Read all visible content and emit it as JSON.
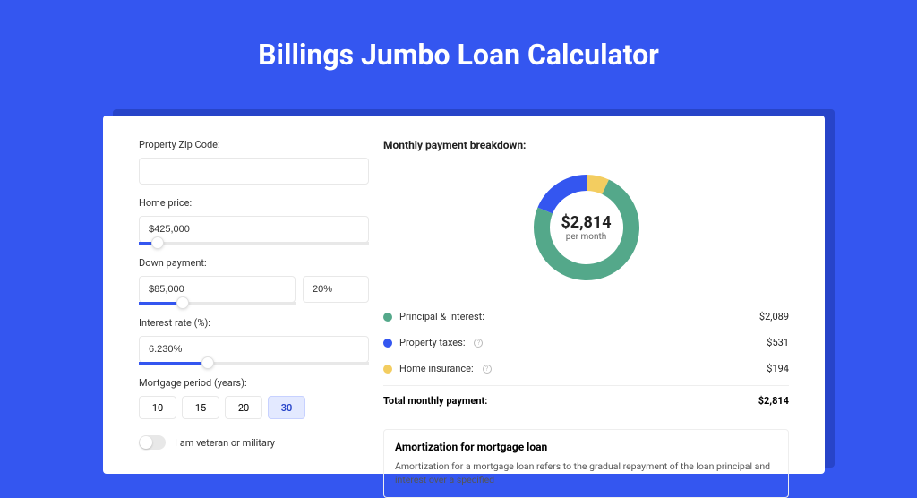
{
  "page": {
    "title": "Billings Jumbo Loan Calculator",
    "background_color": "#3456f0",
    "card_shadow_color": "#2744c9"
  },
  "form": {
    "zip": {
      "label": "Property Zip Code:",
      "value": ""
    },
    "home_price": {
      "label": "Home price:",
      "value": "$425,000",
      "slider_position_pct": 8
    },
    "down_payment": {
      "label": "Down payment:",
      "value": "$85,000",
      "pct_value": "20%",
      "slider_position_pct": 28
    },
    "interest_rate": {
      "label": "Interest rate (%):",
      "value": "6.230%",
      "slider_position_pct": 30
    },
    "mortgage_period": {
      "label": "Mortgage period (years):",
      "options": [
        "10",
        "15",
        "20",
        "30"
      ],
      "selected": "30"
    },
    "veteran_toggle": {
      "label": "I am veteran or military",
      "checked": false
    }
  },
  "breakdown": {
    "title": "Monthly payment breakdown:",
    "donut": {
      "center_value": "$2,814",
      "center_sub": "per month",
      "slices": [
        {
          "name": "Principal & Interest",
          "color": "#54a88a",
          "value": 2089
        },
        {
          "name": "Property taxes",
          "color": "#3456f0",
          "value": 531
        },
        {
          "name": "Home insurance",
          "color": "#f3cd60",
          "value": 194
        }
      ],
      "background_color": "#ffffff",
      "stroke_width": 18,
      "radius": 50
    },
    "legend": [
      {
        "label": "Principal & Interest:",
        "color": "#54a88a",
        "value": "$2,089",
        "info": false
      },
      {
        "label": "Property taxes:",
        "color": "#3456f0",
        "value": "$531",
        "info": true
      },
      {
        "label": "Home insurance:",
        "color": "#f3cd60",
        "value": "$194",
        "info": true
      }
    ],
    "total": {
      "label": "Total monthly payment:",
      "value": "$2,814"
    }
  },
  "amortization": {
    "title": "Amortization for mortgage loan",
    "text": "Amortization for a mortgage loan refers to the gradual repayment of the loan principal and interest over a specified"
  }
}
